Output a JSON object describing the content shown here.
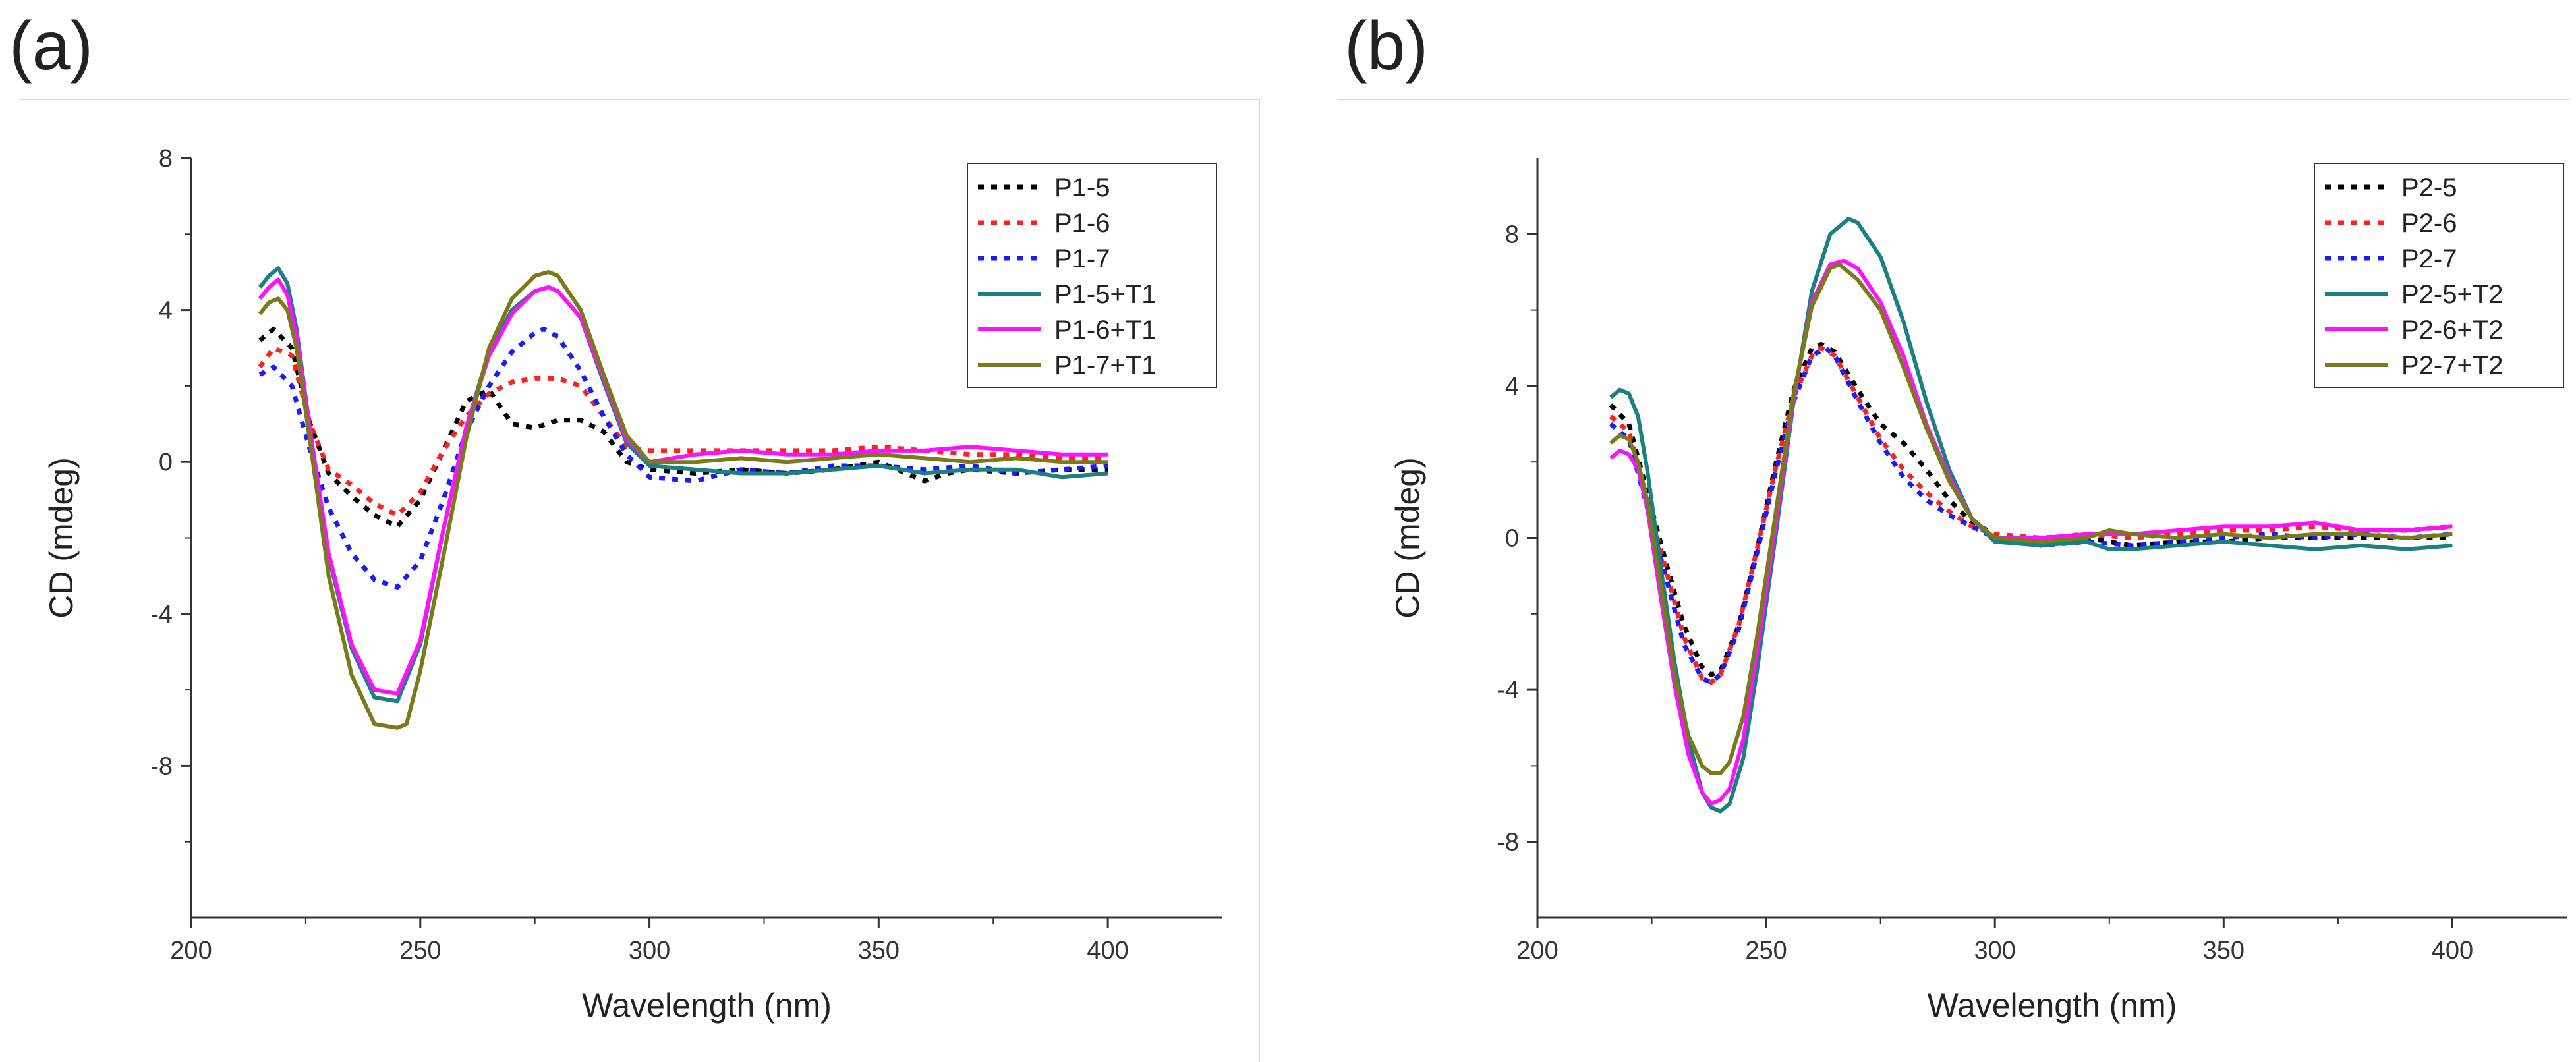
{
  "panels": [
    {
      "label": "(a)",
      "chart_data": {
        "type": "line",
        "title": "",
        "xlabel": "Wavelength (nm)",
        "ylabel": "CD (mdeg)",
        "xlim": [
          200,
          425
        ],
        "ylim": [
          -12,
          8
        ],
        "xticks": [
          200,
          250,
          300,
          350,
          400
        ],
        "yticks": [
          -8,
          -4,
          0,
          4,
          8
        ],
        "legend_position": "top-right",
        "series": [
          {
            "name": "P1-5",
            "color": "#000000",
            "dash": "dotted",
            "x": [
              215,
              218,
              222,
              226,
              230,
              235,
              240,
              245,
              250,
              255,
              260,
              265,
              270,
              275,
              280,
              285,
              290,
              295,
              300,
              310,
              320,
              330,
              340,
              350,
              360,
              365,
              370,
              380,
              390,
              400
            ],
            "y": [
              3.2,
              3.5,
              3.0,
              1.0,
              -0.3,
              -0.9,
              -1.4,
              -1.7,
              -1.0,
              0.3,
              1.6,
              1.9,
              1.0,
              0.9,
              1.1,
              1.1,
              0.8,
              0.0,
              -0.2,
              -0.3,
              -0.2,
              -0.3,
              -0.2,
              0.0,
              -0.5,
              -0.3,
              -0.2,
              -0.3,
              -0.2,
              -0.2
            ]
          },
          {
            "name": "P1-6",
            "color": "#ff2020",
            "dash": "dotted",
            "x": [
              215,
              218,
              222,
              226,
              230,
              235,
              240,
              245,
              250,
              255,
              260,
              265,
              270,
              275,
              280,
              285,
              290,
              295,
              300,
              310,
              320,
              330,
              340,
              350,
              360,
              370,
              380,
              390,
              400
            ],
            "y": [
              2.5,
              3.0,
              2.8,
              1.0,
              -0.2,
              -0.6,
              -1.1,
              -1.4,
              -0.8,
              0.3,
              1.2,
              1.8,
              2.1,
              2.2,
              2.2,
              2.0,
              1.2,
              0.4,
              0.3,
              0.3,
              0.3,
              0.3,
              0.3,
              0.4,
              0.3,
              0.2,
              0.2,
              0.1,
              0.1
            ]
          },
          {
            "name": "P1-7",
            "color": "#1a1aff",
            "dash": "dotted",
            "x": [
              215,
              218,
              222,
              226,
              230,
              235,
              240,
              245,
              250,
              255,
              260,
              265,
              270,
              275,
              277,
              280,
              285,
              290,
              295,
              300,
              310,
              320,
              330,
              340,
              350,
              360,
              370,
              380,
              390,
              400
            ],
            "y": [
              2.3,
              2.5,
              2.0,
              0.3,
              -1.2,
              -2.4,
              -3.1,
              -3.3,
              -2.6,
              -1.0,
              0.8,
              2.0,
              2.9,
              3.4,
              3.5,
              3.3,
              2.4,
              1.2,
              0.2,
              -0.4,
              -0.5,
              -0.2,
              -0.3,
              -0.1,
              -0.1,
              -0.2,
              -0.1,
              -0.3,
              -0.2,
              -0.1
            ]
          },
          {
            "name": "P1-5+T1",
            "color": "#1a8080",
            "dash": "solid",
            "x": [
              215,
              217,
              219,
              221,
              223,
              226,
              230,
              235,
              240,
              245,
              250,
              255,
              260,
              265,
              270,
              275,
              278,
              280,
              285,
              290,
              295,
              300,
              310,
              320,
              330,
              340,
              350,
              360,
              370,
              380,
              390,
              400
            ],
            "y": [
              4.6,
              4.9,
              5.1,
              4.7,
              3.5,
              0.8,
              -2.5,
              -4.9,
              -6.2,
              -6.3,
              -4.8,
              -1.8,
              0.9,
              2.9,
              4.0,
              4.5,
              4.6,
              4.5,
              3.8,
              2.1,
              0.5,
              -0.1,
              -0.2,
              -0.3,
              -0.3,
              -0.2,
              -0.1,
              -0.3,
              -0.2,
              -0.2,
              -0.4,
              -0.3
            ]
          },
          {
            "name": "P1-6+T1",
            "color": "#ff10ff",
            "dash": "solid",
            "x": [
              215,
              217,
              219,
              221,
              223,
              226,
              230,
              235,
              240,
              245,
              250,
              255,
              260,
              265,
              270,
              275,
              278,
              280,
              285,
              290,
              295,
              300,
              310,
              320,
              330,
              340,
              350,
              360,
              370,
              380,
              390,
              400
            ],
            "y": [
              4.3,
              4.6,
              4.8,
              4.4,
              3.3,
              0.8,
              -2.4,
              -4.8,
              -6.0,
              -6.1,
              -4.7,
              -1.8,
              0.9,
              2.8,
              3.9,
              4.5,
              4.6,
              4.5,
              3.8,
              2.2,
              0.6,
              0.0,
              0.2,
              0.3,
              0.2,
              0.2,
              0.3,
              0.3,
              0.4,
              0.3,
              0.2,
              0.2
            ]
          },
          {
            "name": "P1-7+T1",
            "color": "#7a7a1a",
            "dash": "solid",
            "x": [
              215,
              217,
              219,
              221,
              223,
              226,
              230,
              235,
              240,
              245,
              247,
              250,
              255,
              260,
              265,
              270,
              275,
              278,
              280,
              285,
              290,
              295,
              300,
              310,
              320,
              330,
              340,
              350,
              360,
              370,
              380,
              390,
              400
            ],
            "y": [
              3.9,
              4.2,
              4.3,
              4.0,
              3.0,
              0.5,
              -3.0,
              -5.6,
              -6.9,
              -7.0,
              -6.9,
              -5.5,
              -2.5,
              0.6,
              3.0,
              4.3,
              4.9,
              5.0,
              4.9,
              4.0,
              2.3,
              0.7,
              0.0,
              0.0,
              0.1,
              0.0,
              0.1,
              0.2,
              0.1,
              0.0,
              0.1,
              0.0,
              0.0
            ]
          }
        ]
      }
    },
    {
      "label": "(b)",
      "chart_data": {
        "type": "line",
        "title": "",
        "xlabel": "Wavelength (nm)",
        "ylabel": "CD (mdeg)",
        "xlim": [
          200,
          425
        ],
        "ylim": [
          -10,
          10
        ],
        "xticks": [
          200,
          250,
          300,
          350,
          400
        ],
        "yticks": [
          -8,
          -4,
          0,
          4,
          8
        ],
        "legend_position": "top-right",
        "series": [
          {
            "name": "P2-5",
            "color": "#000000",
            "dash": "dotted",
            "x": [
              216,
              220,
              224,
              228,
              232,
              236,
              238,
              240,
              244,
              248,
              252,
              256,
              260,
              262,
              265,
              270,
              275,
              280,
              285,
              290,
              295,
              300,
              310,
              320,
              330,
              340,
              350,
              360,
              370,
              380,
              390,
              400
            ],
            "y": [
              3.5,
              3.0,
              1.2,
              -0.6,
              -2.3,
              -3.4,
              -3.6,
              -3.5,
              -2.3,
              -0.3,
              1.9,
              3.9,
              5.0,
              5.1,
              4.9,
              3.9,
              3.0,
              2.5,
              1.8,
              1.0,
              0.4,
              0.1,
              -0.1,
              0.0,
              -0.2,
              -0.1,
              -0.1,
              0.0,
              0.0,
              0.0,
              0.0,
              0.0
            ]
          },
          {
            "name": "P2-6",
            "color": "#ff2020",
            "dash": "dotted",
            "x": [
              216,
              220,
              224,
              228,
              232,
              236,
              238,
              240,
              244,
              248,
              252,
              256,
              260,
              262,
              265,
              270,
              275,
              280,
              285,
              290,
              295,
              300,
              310,
              320,
              330,
              340,
              350,
              360,
              370,
              380,
              390,
              400
            ],
            "y": [
              3.2,
              2.8,
              1.0,
              -0.8,
              -2.6,
              -3.7,
              -3.8,
              -3.6,
              -2.3,
              -0.3,
              1.8,
              3.7,
              4.8,
              5.0,
              4.8,
              3.7,
              2.6,
              1.8,
              1.2,
              0.7,
              0.3,
              0.1,
              0.0,
              0.1,
              0.0,
              0.1,
              0.2,
              0.2,
              0.3,
              0.2,
              0.2,
              0.3
            ]
          },
          {
            "name": "P2-7",
            "color": "#1a1aff",
            "dash": "dotted",
            "x": [
              216,
              220,
              224,
              228,
              232,
              236,
              238,
              240,
              244,
              248,
              252,
              256,
              260,
              263,
              265,
              270,
              275,
              280,
              285,
              290,
              295,
              300,
              310,
              320,
              330,
              340,
              350,
              360,
              370,
              380,
              390,
              400
            ],
            "y": [
              3.0,
              2.6,
              0.8,
              -1.0,
              -2.8,
              -3.7,
              -3.8,
              -3.6,
              -2.4,
              -0.4,
              1.7,
              3.6,
              4.8,
              5.0,
              4.8,
              3.6,
              2.5,
              1.6,
              1.0,
              0.6,
              0.3,
              0.0,
              -0.2,
              -0.1,
              -0.2,
              -0.1,
              0.0,
              0.1,
              0.0,
              0.1,
              0.0,
              0.1
            ]
          },
          {
            "name": "P2-5+T2",
            "color": "#1a8080",
            "dash": "solid",
            "x": [
              216,
              218,
              220,
              222,
              224,
              227,
              230,
              233,
              236,
              238,
              240,
              242,
              245,
              248,
              252,
              256,
              260,
              264,
              268,
              270,
              275,
              280,
              285,
              290,
              295,
              300,
              310,
              320,
              325,
              330,
              340,
              350,
              360,
              370,
              380,
              390,
              400
            ],
            "y": [
              3.7,
              3.9,
              3.8,
              3.2,
              1.8,
              -0.8,
              -3.3,
              -5.3,
              -6.7,
              -7.1,
              -7.2,
              -7.0,
              -5.8,
              -3.5,
              0.0,
              3.6,
              6.5,
              8.0,
              8.4,
              8.3,
              7.4,
              5.7,
              3.6,
              1.8,
              0.5,
              -0.1,
              -0.2,
              -0.1,
              -0.3,
              -0.3,
              -0.2,
              -0.1,
              -0.2,
              -0.3,
              -0.2,
              -0.3,
              -0.2
            ]
          },
          {
            "name": "P2-6+T2",
            "color": "#ff10ff",
            "dash": "solid",
            "x": [
              216,
              218,
              220,
              222,
              224,
              227,
              230,
              233,
              236,
              238,
              240,
              242,
              245,
              248,
              252,
              256,
              260,
              264,
              267,
              270,
              275,
              280,
              285,
              290,
              295,
              300,
              310,
              320,
              330,
              340,
              350,
              360,
              370,
              380,
              390,
              400
            ],
            "y": [
              2.1,
              2.3,
              2.2,
              1.8,
              0.8,
              -1.6,
              -3.9,
              -5.7,
              -6.7,
              -7.0,
              -6.9,
              -6.6,
              -5.3,
              -3.0,
              0.3,
              3.7,
              6.2,
              7.2,
              7.3,
              7.1,
              6.2,
              4.8,
              3.0,
              1.6,
              0.5,
              0.0,
              0.0,
              0.1,
              0.1,
              0.2,
              0.3,
              0.3,
              0.4,
              0.2,
              0.2,
              0.3
            ]
          },
          {
            "name": "P2-7+T2",
            "color": "#7a7a1a",
            "dash": "solid",
            "x": [
              216,
              218,
              220,
              222,
              224,
              227,
              230,
              233,
              236,
              238,
              240,
              242,
              245,
              248,
              252,
              256,
              260,
              264,
              266,
              270,
              275,
              280,
              285,
              290,
              295,
              300,
              310,
              320,
              325,
              330,
              340,
              350,
              360,
              370,
              380,
              390,
              400
            ],
            "y": [
              2.5,
              2.7,
              2.6,
              2.0,
              1.0,
              -1.3,
              -3.6,
              -5.2,
              -6.0,
              -6.2,
              -6.2,
              -5.9,
              -4.7,
              -2.6,
              0.6,
              3.8,
              6.1,
              7.1,
              7.2,
              6.8,
              6.0,
              4.5,
              2.9,
              1.5,
              0.5,
              0.0,
              -0.1,
              0.0,
              0.2,
              0.1,
              0.0,
              0.1,
              0.0,
              0.1,
              0.1,
              0.0,
              0.1
            ]
          }
        ]
      }
    }
  ]
}
